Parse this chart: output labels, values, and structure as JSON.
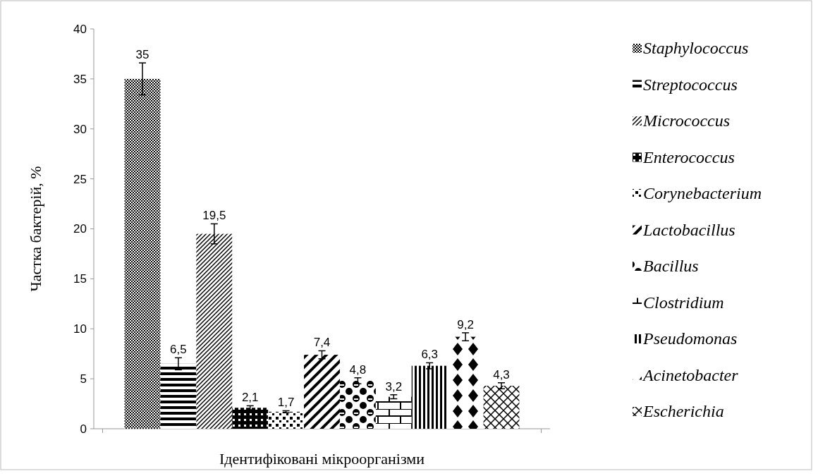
{
  "chart_data": {
    "type": "bar",
    "xlabel": "Ідентифіковані мікроорганізми",
    "ylabel": "Частка бактерій, %",
    "categories": [
      null
    ],
    "series": [
      {
        "name": "Staphylococcus",
        "color": "#000000",
        "values": [
          35
        ],
        "errors": [
          1.6
        ],
        "value_labels": [
          "35"
        ]
      },
      {
        "name": "Streptococcus",
        "color": "#000000",
        "values": [
          6.5
        ],
        "errors": [
          0.6
        ],
        "value_labels": [
          "6,5"
        ]
      },
      {
        "name": "Micrococcus",
        "color": "#000000",
        "values": [
          19.5
        ],
        "errors": [
          1.0
        ],
        "value_labels": [
          "19,5"
        ]
      },
      {
        "name": "Enterococcus",
        "color": "#000000",
        "values": [
          2.1
        ],
        "errors": [
          0.2
        ],
        "value_labels": [
          "2,1"
        ]
      },
      {
        "name": "Corynebacterium",
        "color": "#000000",
        "values": [
          1.7
        ],
        "errors": [
          0.1
        ],
        "value_labels": [
          "1,7"
        ]
      },
      {
        "name": "Lactobacillus",
        "color": "#000000",
        "values": [
          7.4
        ],
        "errors": [
          0.4
        ],
        "value_labels": [
          "7,4"
        ]
      },
      {
        "name": "Bacillus",
        "color": "#000000",
        "values": [
          4.8
        ],
        "errors": [
          0.3
        ],
        "value_labels": [
          "4,8"
        ]
      },
      {
        "name": "Clostridium",
        "color": "#000000",
        "values": [
          3.2
        ],
        "errors": [
          0.2
        ],
        "value_labels": [
          "3,2"
        ]
      },
      {
        "name": "Pseudomonas",
        "color": "#000000",
        "values": [
          6.3
        ],
        "errors": [
          0.3
        ],
        "value_labels": [
          "6,3"
        ]
      },
      {
        "name": "Acinetobacter",
        "color": "#000000",
        "values": [
          9.2
        ],
        "errors": [
          0.4
        ],
        "value_labels": [
          "9,2"
        ]
      },
      {
        "name": "Escherichia",
        "color": "#000000",
        "values": [
          4.3
        ],
        "errors": [
          0.3
        ],
        "value_labels": [
          "4,3"
        ]
      }
    ],
    "ylim": [
      0,
      40
    ],
    "yticks": [
      0,
      5,
      10,
      15,
      20,
      25,
      30,
      35,
      40
    ],
    "grid": false,
    "legend": "right"
  }
}
